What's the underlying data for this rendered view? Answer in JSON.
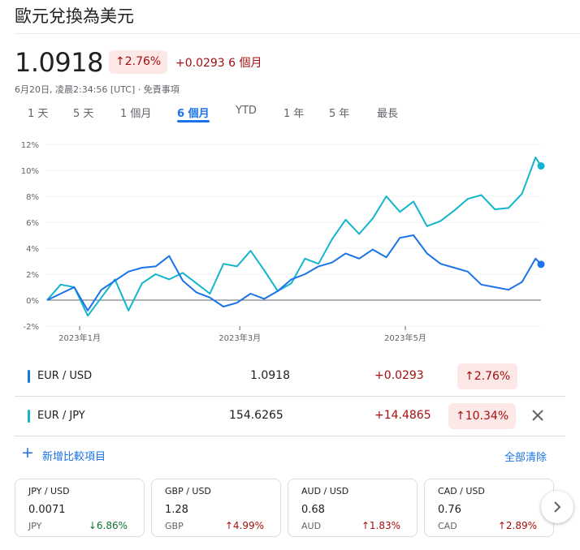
{
  "page": {
    "title": "歐元兌換為美元",
    "price": "1.0918",
    "pct_change": "2.76%",
    "abs_change": "+0.0293 6 個月",
    "timestamp": "6月20日, 凌晨2:34:56 [UTC] · 免責事項"
  },
  "tabs": [
    {
      "label": "1 天",
      "active": false
    },
    {
      "label": "5 天",
      "active": false
    },
    {
      "label": "1 個月",
      "active": false
    },
    {
      "label": "6 個月",
      "active": true
    },
    {
      "label": "YTD",
      "active": false
    },
    {
      "label": "1 年",
      "active": false
    },
    {
      "label": "5 年",
      "active": false
    },
    {
      "label": "最長",
      "active": false
    }
  ],
  "chart_data": {
    "type": "line",
    "y_tick_labels": [
      "12%",
      "10%",
      "8%",
      "6%",
      "4%",
      "2%",
      "0%",
      "-2%"
    ],
    "x_tick_labels": [
      "2023年1月",
      "2023年3月",
      "2023年5月"
    ],
    "ylim": [
      -2,
      12
    ],
    "grid": true,
    "series": [
      {
        "name": "EUR / USD",
        "color": "#1a73e8",
        "x": [
          "2022-12-20",
          "2022-12-25",
          "2022-12-30",
          "2023-01-04",
          "2023-01-09",
          "2023-01-14",
          "2023-01-19",
          "2023-01-24",
          "2023-01-29",
          "2023-02-03",
          "2023-02-08",
          "2023-02-13",
          "2023-02-18",
          "2023-02-23",
          "2023-02-28",
          "2023-03-05",
          "2023-03-10",
          "2023-03-15",
          "2023-03-20",
          "2023-03-25",
          "2023-03-30",
          "2023-04-04",
          "2023-04-09",
          "2023-04-14",
          "2023-04-19",
          "2023-04-24",
          "2023-04-29",
          "2023-05-04",
          "2023-05-09",
          "2023-05-14",
          "2023-05-19",
          "2023-05-24",
          "2023-05-29",
          "2023-06-03",
          "2023-06-08",
          "2023-06-13",
          "2023-06-18",
          "2023-06-20"
        ],
        "values": [
          0.0,
          0.5,
          1.0,
          -0.8,
          0.8,
          1.5,
          2.2,
          2.5,
          2.6,
          3.4,
          1.5,
          0.6,
          0.2,
          -0.5,
          -0.2,
          0.5,
          0.1,
          0.7,
          1.6,
          2.0,
          2.6,
          2.9,
          3.6,
          3.2,
          3.9,
          3.3,
          4.8,
          5.0,
          3.6,
          2.8,
          2.5,
          2.2,
          1.2,
          1.0,
          0.8,
          1.4,
          3.2,
          2.76
        ]
      },
      {
        "name": "EUR / JPY",
        "color": "#12b5cb",
        "x": [
          "2022-12-20",
          "2022-12-25",
          "2022-12-30",
          "2023-01-04",
          "2023-01-09",
          "2023-01-14",
          "2023-01-19",
          "2023-01-24",
          "2023-01-29",
          "2023-02-03",
          "2023-02-08",
          "2023-02-13",
          "2023-02-18",
          "2023-02-23",
          "2023-02-28",
          "2023-03-05",
          "2023-03-10",
          "2023-03-15",
          "2023-03-20",
          "2023-03-25",
          "2023-03-30",
          "2023-04-04",
          "2023-04-09",
          "2023-04-14",
          "2023-04-19",
          "2023-04-24",
          "2023-04-29",
          "2023-05-04",
          "2023-05-09",
          "2023-05-14",
          "2023-05-19",
          "2023-05-24",
          "2023-05-29",
          "2023-06-03",
          "2023-06-08",
          "2023-06-13",
          "2023-06-18",
          "2023-06-20"
        ],
        "values": [
          0.0,
          1.2,
          1.0,
          -1.2,
          0.2,
          1.6,
          -0.8,
          1.3,
          2.0,
          1.6,
          2.1,
          1.3,
          0.5,
          2.8,
          2.6,
          3.8,
          2.3,
          0.7,
          1.3,
          3.2,
          2.8,
          4.7,
          6.2,
          5.1,
          6.3,
          8.0,
          6.8,
          7.6,
          5.7,
          6.1,
          6.9,
          7.8,
          8.1,
          7.0,
          7.1,
          8.2,
          11.0,
          10.34
        ]
      }
    ]
  },
  "comparison": {
    "rows": [
      {
        "name": "EUR / USD",
        "price": "1.0918",
        "abs": "+0.0293",
        "pct": "2.76%",
        "color": "#1a73e8",
        "removable": false
      },
      {
        "name": "EUR / JPY",
        "price": "154.6265",
        "abs": "+14.4865",
        "pct": "10.34%",
        "color": "#12b5cb",
        "removable": true
      }
    ],
    "add_label": "新增比較項目",
    "clear_label": "全部清除"
  },
  "cards": [
    {
      "pair": "JPY / USD",
      "value": "0.0071",
      "base": "JPY",
      "change": "6.86%",
      "direction": "down"
    },
    {
      "pair": "GBP / USD",
      "value": "1.28",
      "base": "GBP",
      "change": "4.99%",
      "direction": "up"
    },
    {
      "pair": "AUD / USD",
      "value": "0.68",
      "base": "AUD",
      "change": "1.83%",
      "direction": "up"
    },
    {
      "pair": "CAD / USD",
      "value": "0.76",
      "base": "CAD",
      "change": "2.89%",
      "direction": "up"
    }
  ],
  "icons": {
    "up_arrow": "arrow-up-icon",
    "down_arrow": "arrow-down-icon",
    "close": "close-icon",
    "add": "plus-icon",
    "next": "chevron-right-icon"
  }
}
